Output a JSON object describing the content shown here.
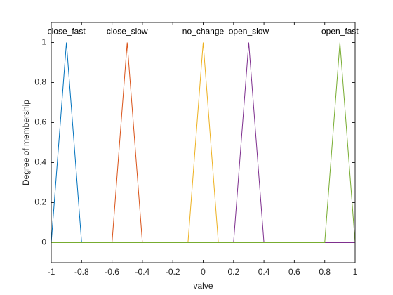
{
  "chart_data": {
    "type": "line",
    "x_label": "valve",
    "y_label": "Degree of membership",
    "xlim": [
      -1,
      1
    ],
    "ylim": [
      -0.1,
      1.1
    ],
    "xticks": [
      -1,
      -0.8,
      -0.6,
      -0.4,
      -0.2,
      0,
      0.2,
      0.4,
      0.6,
      0.8,
      1
    ],
    "yticks": [
      0,
      0.2,
      0.4,
      0.6,
      0.8,
      1
    ],
    "series": [
      {
        "name": "close_fast",
        "color": "#0072BD",
        "x": [
          -1,
          -0.9,
          -0.8,
          1
        ],
        "values": [
          0,
          1,
          0,
          0
        ]
      },
      {
        "name": "close_slow",
        "color": "#D95319",
        "x": [
          -1,
          -0.6,
          -0.5,
          -0.4,
          1
        ],
        "values": [
          0,
          0,
          1,
          0,
          0
        ]
      },
      {
        "name": "no_change",
        "color": "#EDB120",
        "x": [
          -1,
          -0.1,
          0,
          0.1,
          1
        ],
        "values": [
          0,
          0,
          1,
          0,
          0
        ]
      },
      {
        "name": "open_slow",
        "color": "#7E2F8E",
        "x": [
          -1,
          0.2,
          0.3,
          0.4,
          1
        ],
        "values": [
          0,
          0,
          1,
          0,
          0
        ]
      },
      {
        "name": "open_fast",
        "color": "#77AC30",
        "x": [
          -1,
          0.8,
          0.9,
          1
        ],
        "values": [
          0,
          0,
          1,
          0
        ]
      }
    ]
  }
}
